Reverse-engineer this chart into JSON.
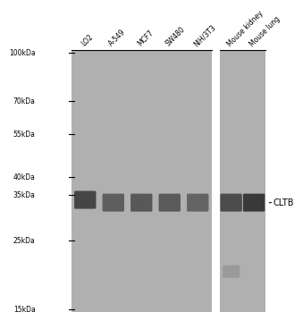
{
  "bg_color": "#c8c8c8",
  "panel_bg": "#b8b8b8",
  "fig_bg": "#ffffff",
  "lanes": [
    "LO2",
    "A-549",
    "MCF7",
    "SW480",
    "NIH/3T3",
    "Mouse kidney",
    "Mouse lung"
  ],
  "mw_labels": [
    "100kDa",
    "70kDa",
    "55kDa",
    "40kDa",
    "35kDa",
    "25kDa",
    "15kDa"
  ],
  "mw_positions": [
    100,
    70,
    55,
    40,
    35,
    25,
    15
  ],
  "gene_label": "CLTB",
  "gene_mw": 35,
  "panel1_lanes": [
    0,
    1,
    2,
    3,
    4
  ],
  "panel2_lanes": [
    5,
    6
  ],
  "band_35_intensities": [
    0.85,
    0.65,
    0.7,
    0.68,
    0.6,
    0.8,
    0.95
  ],
  "band_20_intensities": [
    0.0,
    0.0,
    0.0,
    0.0,
    0.0,
    0.25,
    0.0
  ],
  "band_color_dark": "#222222",
  "band_color_mid": "#444444",
  "separator_color": "#ffffff"
}
